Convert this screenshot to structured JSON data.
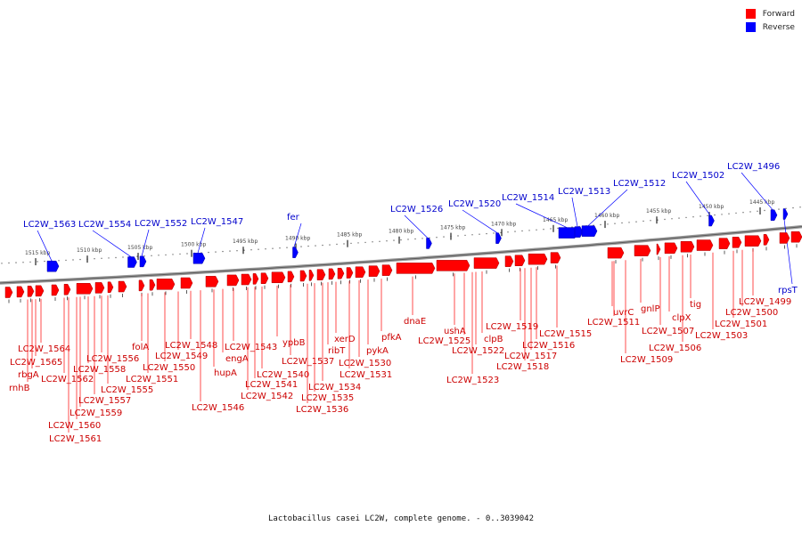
{
  "legend": {
    "items": [
      {
        "label": "Forward",
        "color": "#ff0000"
      },
      {
        "label": "Reverse",
        "color": "#0000ff"
      }
    ]
  },
  "caption": "Lactobacillus casei LC2W, complete genome. - 0..3039042",
  "colors": {
    "forward": "#ff0000",
    "reverse": "#0000ff",
    "label_forward": "#cc0000",
    "label_reverse": "#0000cc",
    "backbone": "#888888"
  },
  "ticks": [
    "1515 kbp",
    "1510 kbp",
    "1505 kbp",
    "1500 kbp",
    "1495 kbp",
    "1490 kbp",
    "1485 kbp",
    "1480 kbp",
    "1475 kbp",
    "1470 kbp",
    "1465 kbp",
    "1460 kbp",
    "1455 kbp",
    "1450 kbp",
    "1445 kbp"
  ],
  "reverse_genes": [
    "LC2W_1563",
    "LC2W_1554",
    "LC2W_1552",
    "LC2W_1547",
    "fer",
    "LC2W_1526",
    "LC2W_1520",
    "LC2W_1514",
    "LC2W_1513",
    "LC2W_1512",
    "LC2W_1502",
    "LC2W_1496",
    "rpsT"
  ],
  "forward_genes": [
    "LC2W_1564",
    "LC2W_1565",
    "rbgA",
    "rnhB",
    "LC2W_1562",
    "LC2W_1561",
    "LC2W_1560",
    "LC2W_1559",
    "LC2W_1558",
    "LC2W_1557",
    "LC2W_1556",
    "LC2W_1555",
    "folA",
    "LC2W_1551",
    "LC2W_1550",
    "LC2W_1549",
    "LC2W_1548",
    "LC2W_1546",
    "hupA",
    "engA",
    "LC2W_1543",
    "LC2W_1542",
    "LC2W_1541",
    "LC2W_1540",
    "ypbB",
    "LC2W_1537",
    "LC2W_1536",
    "LC2W_1535",
    "LC2W_1534",
    "ribT",
    "xerD",
    "LC2W_1531",
    "LC2W_1530",
    "pykA",
    "pfkA",
    "dnaE",
    "ushA",
    "LC2W_1525",
    "clpB",
    "LC2W_1523",
    "LC2W_1522",
    "LC2W_1519",
    "LC2W_1518",
    "LC2W_1517",
    "LC2W_1516",
    "LC2W_1515",
    "uvrC",
    "LC2W_1511",
    "LC2W_1509",
    "gnlP",
    "LC2W_1507",
    "clpX",
    "LC2W_1506",
    "tig",
    "LC2W_1503",
    "LC2W_1501",
    "LC2W_1500",
    "LC2W_1499"
  ]
}
